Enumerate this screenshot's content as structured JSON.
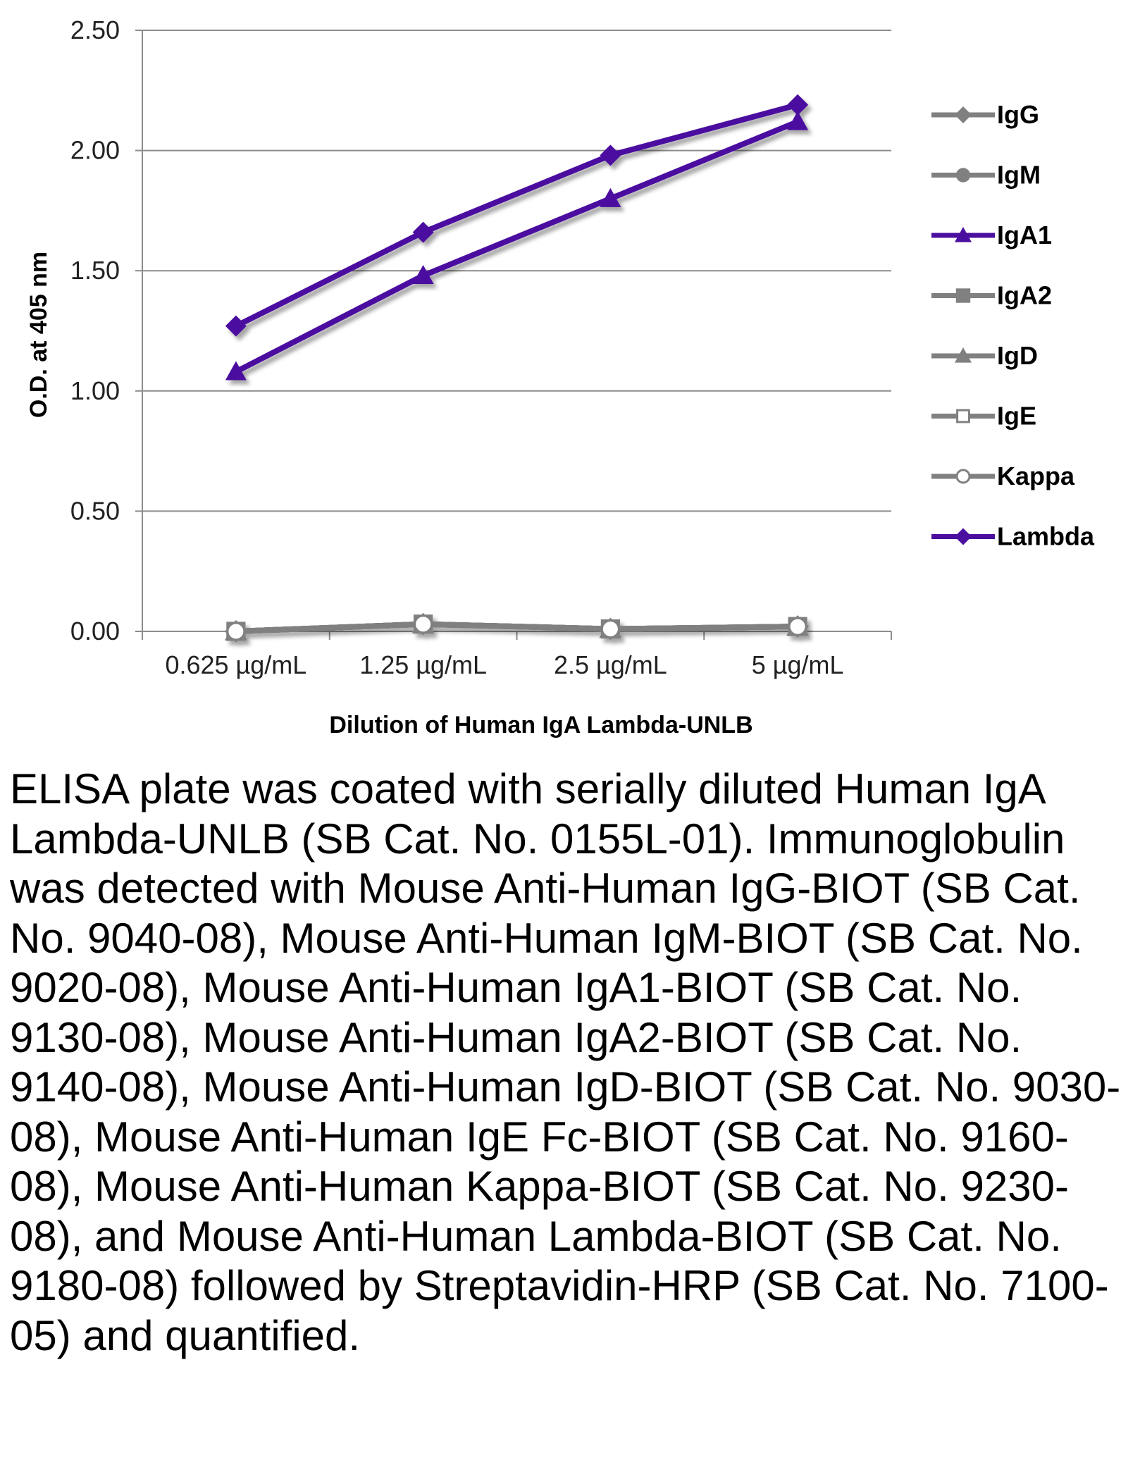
{
  "chart_data": {
    "type": "line",
    "categories": [
      "0.625 µg/mL",
      "1.25 µg/mL",
      "2.5 µg/mL",
      "5 µg/mL"
    ],
    "xlabel": "Dilution of Human IgA Lambda-UNLB",
    "ylabel": "O.D. at 405 nm",
    "ylim": [
      0,
      2.5
    ],
    "yticks": [
      "0.00",
      "0.50",
      "1.00",
      "1.50",
      "2.00",
      "2.50"
    ],
    "ytick_values": [
      0,
      0.5,
      1,
      1.5,
      2,
      2.5
    ],
    "grid": "horizontal",
    "legend_position": "right",
    "series": [
      {
        "name": "IgG",
        "values": [
          0.0,
          0.03,
          0.01,
          0.02
        ],
        "color": "#808080",
        "marker": "diamond"
      },
      {
        "name": "IgM",
        "values": [
          0.0,
          0.03,
          0.01,
          0.02
        ],
        "color": "#808080",
        "marker": "circle"
      },
      {
        "name": "IgA1",
        "values": [
          1.08,
          1.48,
          1.8,
          2.12
        ],
        "color": "#4b0fa0",
        "marker": "triangle"
      },
      {
        "name": "IgA2",
        "values": [
          0.0,
          0.03,
          0.01,
          0.02
        ],
        "color": "#808080",
        "marker": "square"
      },
      {
        "name": "IgD",
        "values": [
          0.0,
          0.03,
          0.01,
          0.02
        ],
        "color": "#808080",
        "marker": "triangle"
      },
      {
        "name": "IgE",
        "values": [
          0.0,
          0.03,
          0.01,
          0.02
        ],
        "color": "#808080",
        "marker": "square-open"
      },
      {
        "name": "Kappa",
        "values": [
          0.0,
          0.03,
          0.01,
          0.02
        ],
        "color": "#808080",
        "marker": "circle-open"
      },
      {
        "name": "Lambda",
        "values": [
          1.27,
          1.66,
          1.98,
          2.19
        ],
        "color": "#4b0fa0",
        "marker": "diamond"
      }
    ]
  },
  "caption": "ELISA plate was coated with serially diluted Human IgA Lambda-UNLB (SB Cat. No. 0155L-01). Immunoglobulin was detected with Mouse Anti-Human IgG-BIOT (SB Cat. No. 9040-08), Mouse Anti-Human IgM-BIOT (SB Cat. No. 9020-08), Mouse Anti-Human IgA1-BIOT (SB Cat. No. 9130-08), Mouse Anti-Human IgA2-BIOT (SB Cat. No. 9140-08), Mouse Anti-Human IgD-BIOT (SB Cat. No. 9030-08), Mouse Anti-Human IgE Fc-BIOT (SB Cat. No. 9160-08), Mouse Anti-Human Kappa-BIOT (SB Cat. No. 9230-08), and Mouse Anti-Human Lambda-BIOT (SB Cat. No. 9180-08) followed by Streptavidin-HRP (SB Cat. No. 7100-05) and quantified."
}
